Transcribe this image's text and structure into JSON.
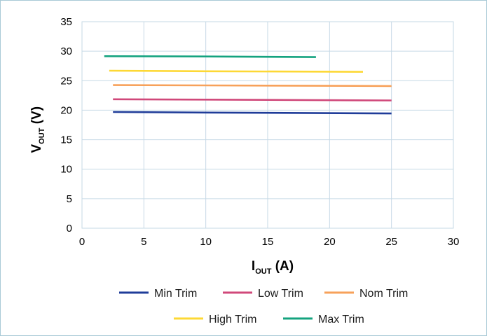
{
  "chart_data": {
    "type": "line",
    "title": "",
    "xlabel": {
      "main": "I",
      "sub": "OUT",
      "unit": " (A)"
    },
    "ylabel": {
      "main": "V",
      "sub": "OUT",
      "unit": " (V)"
    },
    "xlim": [
      0,
      30
    ],
    "ylim": [
      0,
      35
    ],
    "xticks": [
      0,
      5,
      10,
      15,
      20,
      25,
      30
    ],
    "yticks": [
      0,
      5,
      10,
      15,
      20,
      25,
      30,
      35
    ],
    "grid": true,
    "legend_position": "bottom",
    "series": [
      {
        "name": "Min Trim",
        "color": "#1f3c99",
        "x": [
          2.5,
          10,
          25
        ],
        "y": [
          19.7,
          19.6,
          19.45
        ]
      },
      {
        "name": "Low Trim",
        "color": "#d0487a",
        "x": [
          2.5,
          10,
          25
        ],
        "y": [
          21.85,
          21.8,
          21.65
        ]
      },
      {
        "name": "Nom Trim",
        "color": "#f7a15a",
        "x": [
          2.5,
          10,
          25
        ],
        "y": [
          24.25,
          24.2,
          24.1
        ]
      },
      {
        "name": "High Trim",
        "color": "#fdd835",
        "x": [
          2.2,
          10,
          22.7
        ],
        "y": [
          26.7,
          26.6,
          26.5
        ]
      },
      {
        "name": "Max Trim",
        "color": "#14a37f",
        "x": [
          1.8,
          10,
          18.9
        ],
        "y": [
          29.15,
          29.1,
          29.0
        ]
      }
    ]
  }
}
